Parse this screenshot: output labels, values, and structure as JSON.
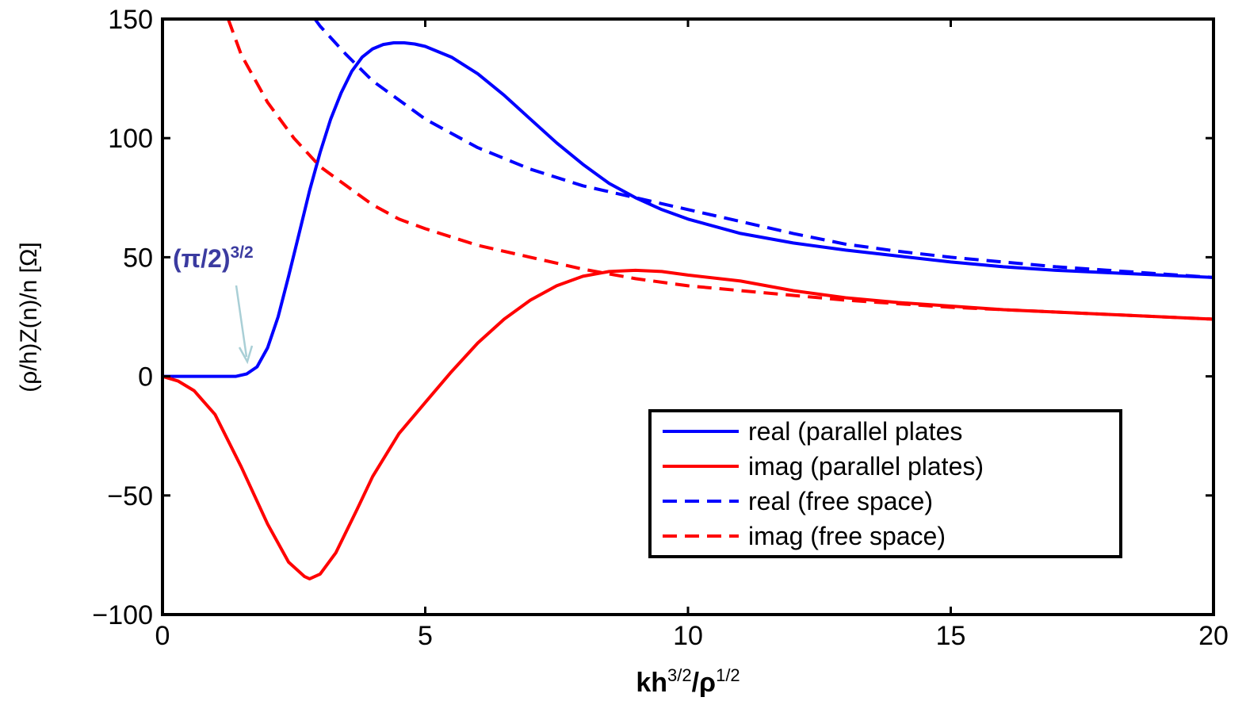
{
  "chart_data": {
    "type": "line",
    "title": "",
    "xlabel": {
      "base": "kh",
      "sup1": "3/2",
      "mid": "/ρ",
      "sup2": "1/2"
    },
    "ylabel": "(ρ/h)Z(n)/n [Ω]",
    "xlim": [
      0,
      20
    ],
    "ylim": [
      -100,
      150
    ],
    "xticks": [
      0,
      5,
      10,
      15,
      20
    ],
    "yticks": [
      -100,
      -50,
      0,
      50,
      100,
      150
    ],
    "xtick_labels": [
      "0",
      "5",
      "10",
      "15",
      "20"
    ],
    "ytick_labels": [
      "−100",
      "−50",
      "0",
      "50",
      "100",
      "150"
    ],
    "grid": false,
    "legend_position": "lower-right",
    "series": [
      {
        "name": "real (parallel plates",
        "color": "#0000ff",
        "dash": "solid",
        "x": [
          0,
          0.5,
          1,
          1.4,
          1.6,
          1.8,
          2,
          2.2,
          2.4,
          2.6,
          2.8,
          3,
          3.2,
          3.4,
          3.6,
          3.8,
          4,
          4.2,
          4.4,
          4.6,
          4.8,
          5,
          5.5,
          6,
          6.5,
          7,
          7.5,
          8,
          8.5,
          9,
          9.5,
          10,
          11,
          12,
          13,
          14,
          15,
          16,
          17,
          18,
          19,
          20
        ],
        "y": [
          0,
          0,
          0,
          0,
          1,
          4,
          12,
          25,
          42,
          60,
          78,
          94,
          108,
          119,
          128,
          134,
          137.5,
          139.3,
          140,
          140,
          139.5,
          138.5,
          134,
          127,
          118,
          108,
          98,
          89,
          81,
          75,
          70,
          66,
          60,
          56,
          53,
          50.5,
          48,
          46,
          44.5,
          43.5,
          42.5,
          41.5
        ]
      },
      {
        "name": "imag (parallel plates)",
        "color": "#ff0000",
        "dash": "solid",
        "x": [
          0,
          0.3,
          0.6,
          1,
          1.5,
          2,
          2.4,
          2.7,
          2.8,
          3,
          3.3,
          3.7,
          4,
          4.5,
          5,
          5.5,
          6,
          6.5,
          7,
          7.5,
          8,
          8.5,
          9,
          9.5,
          10,
          11,
          12,
          13,
          14,
          15,
          16,
          17,
          18,
          19,
          20
        ],
        "y": [
          0,
          -2,
          -6,
          -16,
          -38,
          -62,
          -78,
          -84,
          -85,
          -83,
          -74,
          -56,
          -42,
          -24,
          -11,
          2,
          14,
          24,
          32,
          38,
          42,
          44,
          44.5,
          44,
          42.5,
          40,
          36,
          33,
          31,
          29.5,
          28,
          27,
          26,
          25,
          24
        ]
      },
      {
        "name": "real (free space)",
        "color": "#0000ff",
        "dash": "dashed",
        "x": [
          2.9,
          3,
          3.5,
          4,
          4.5,
          5,
          6,
          7,
          8,
          9,
          10,
          11,
          12,
          13,
          14,
          15,
          16,
          17,
          18,
          19,
          20
        ],
        "y": [
          150,
          147,
          135,
          124,
          116,
          108,
          96,
          87,
          80,
          75,
          70,
          65,
          60,
          55.5,
          52.5,
          50,
          48,
          46,
          44.5,
          43,
          41.5
        ]
      },
      {
        "name": "imag (free space)",
        "color": "#ff0000",
        "dash": "dashed",
        "x": [
          1.25,
          1.5,
          2,
          2.5,
          3,
          3.5,
          4,
          4.5,
          5,
          6,
          7,
          8,
          9,
          10,
          11,
          12,
          13,
          14,
          15,
          16,
          17,
          18,
          19,
          20
        ],
        "y": [
          150,
          135,
          115,
          100,
          88,
          80,
          72,
          66,
          62,
          55,
          50,
          45,
          41,
          38,
          36,
          34,
          32,
          30.5,
          29,
          28,
          27,
          26,
          25,
          24
        ]
      }
    ],
    "annotations": [
      {
        "text": "(π/2)",
        "sup": "3/2",
        "color": "#3b3ba0",
        "arrow_color": "#a9cfd6",
        "x": 1.65,
        "y": 5
      }
    ]
  }
}
